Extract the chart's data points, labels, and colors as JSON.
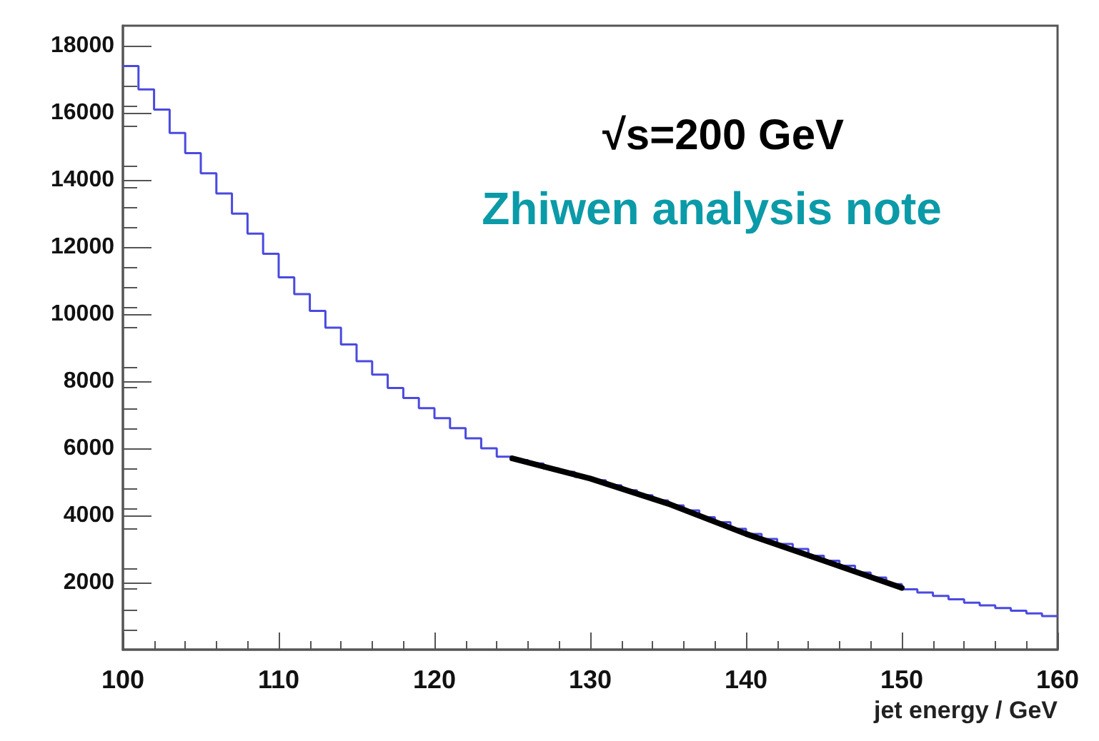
{
  "chart_data": {
    "type": "histogram",
    "xlabel": "jet energy / GeV",
    "annotations": [
      "√s=200 GeV",
      "Zhiwen analysis note"
    ],
    "xlim": [
      100,
      160
    ],
    "xticks": [
      100,
      110,
      120,
      130,
      140,
      150,
      160
    ],
    "ylim": [
      0,
      18600
    ],
    "yticks": [
      2000,
      4000,
      6000,
      8000,
      10000,
      12000,
      14000,
      16000,
      18000
    ],
    "grid": false,
    "series": [
      {
        "type": "histogram",
        "color": "#4a4ae0",
        "bins": [
          100,
          101,
          102,
          103,
          104,
          105,
          106,
          107,
          108,
          109,
          110,
          111,
          112,
          113,
          114,
          115,
          116,
          117,
          118,
          119,
          120,
          121,
          122,
          123,
          124,
          125,
          126,
          127,
          128,
          129,
          130,
          131,
          132,
          133,
          134,
          135,
          136,
          137,
          138,
          139,
          140,
          141,
          142,
          143,
          144,
          145,
          146,
          147,
          148,
          149,
          150,
          151,
          152,
          153,
          154,
          155,
          156,
          157,
          158,
          159,
          160
        ],
        "values": [
          17400,
          16700,
          16100,
          15400,
          14800,
          14200,
          13600,
          13000,
          12400,
          11800,
          11100,
          10600,
          10100,
          9600,
          9100,
          8600,
          8200,
          7800,
          7500,
          7200,
          6900,
          6600,
          6300,
          6000,
          5750,
          5650,
          5550,
          5400,
          5300,
          5150,
          5050,
          4900,
          4750,
          4600,
          4450,
          4300,
          4150,
          3950,
          3800,
          3600,
          3450,
          3300,
          3150,
          3000,
          2800,
          2650,
          2500,
          2300,
          2150,
          1950,
          1800,
          1700,
          1600,
          1500,
          1400,
          1320,
          1240,
          1160,
          1080,
          1000
        ]
      },
      {
        "type": "line",
        "color": "#000000",
        "x": [
          125,
          130,
          135,
          140,
          145,
          150
        ],
        "values": [
          5700,
          5100,
          4350,
          3450,
          2650,
          1840
        ]
      }
    ]
  }
}
